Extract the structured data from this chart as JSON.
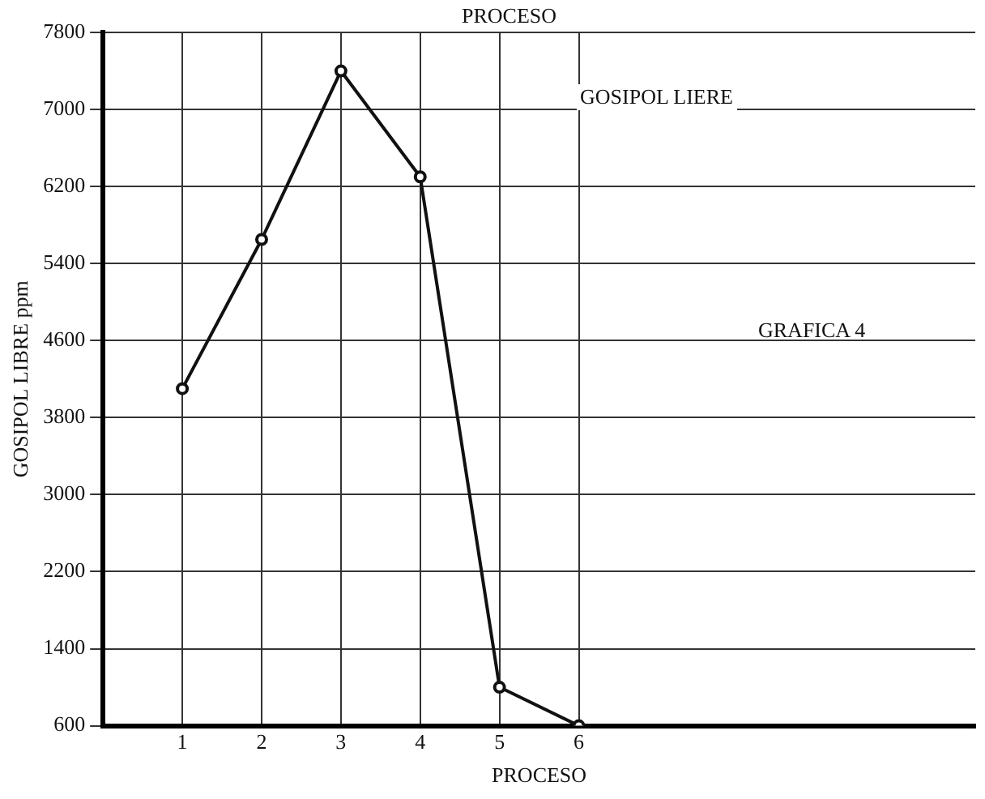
{
  "chart_data": {
    "type": "line",
    "title": "PROCESO",
    "xlabel": "PROCESO",
    "ylabel": "GOSIPOL LIBRE ppm",
    "annotations": [
      "GOSIPOL LIERE",
      "GRAFICA 4"
    ],
    "x": [
      1,
      2,
      3,
      4,
      5,
      6
    ],
    "series": [
      {
        "color": "#111111",
        "values": [
          4100,
          5650,
          7400,
          6300,
          1000,
          600
        ]
      }
    ],
    "xlim": [
      0,
      11
    ],
    "xticks": [
      1,
      2,
      3,
      4,
      5,
      6
    ],
    "ylim": [
      600,
      7800
    ],
    "yticks": [
      600,
      1400,
      2200,
      3000,
      3800,
      4600,
      5400,
      6200,
      7000,
      7800
    ],
    "grid": true,
    "legend": false,
    "marker": "circle",
    "line_style": "solid"
  }
}
